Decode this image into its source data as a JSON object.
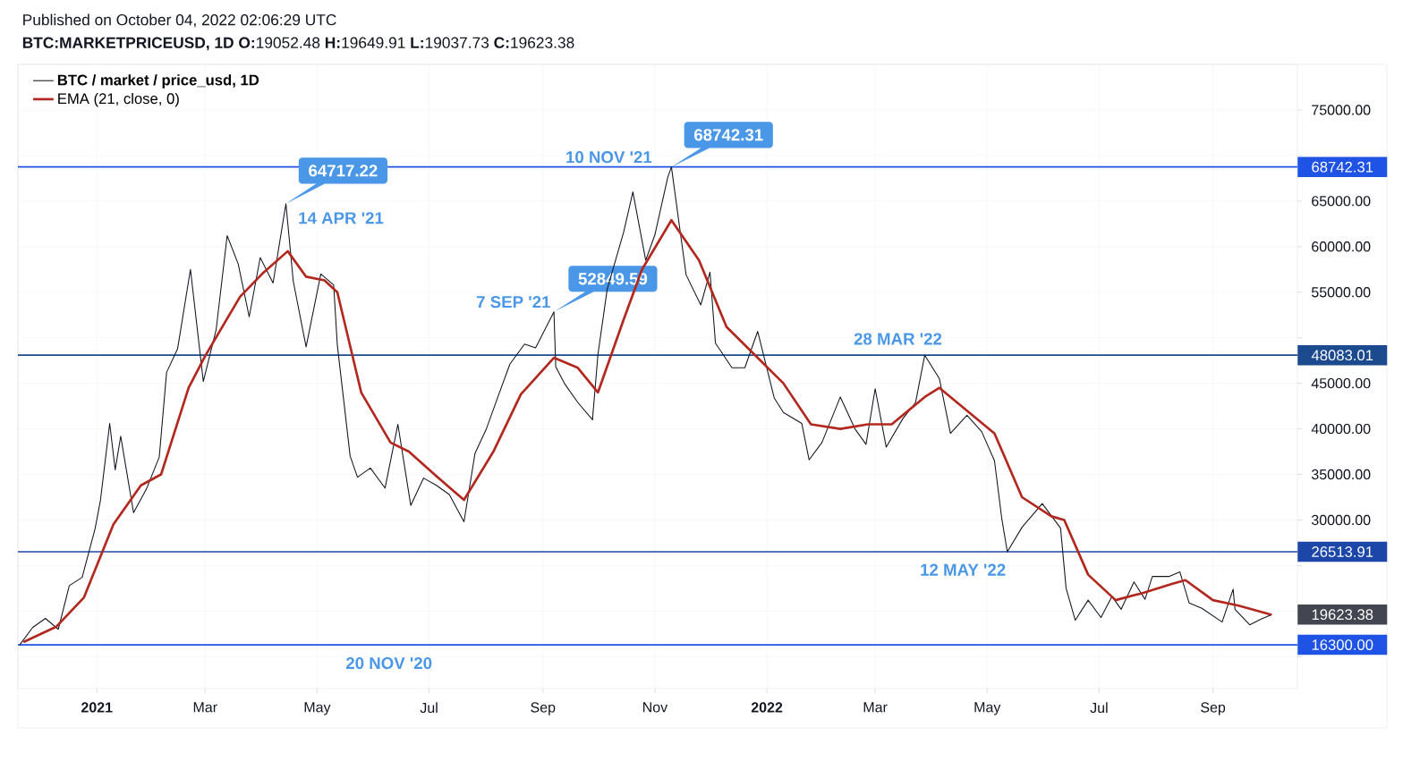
{
  "chart_data": {
    "type": "line",
    "title": "Published on October 04, 2022 02:06:29 UTC",
    "subtitle": "**BTC:MARKETPRICEUSD, 1D O:**19052.48 **H:**19649.91 **L:**19037.73 **C:**19623.38",
    "series": [
      {
        "name": "BTC / market / price_usd, 1D",
        "color": "#131722",
        "x": [
          "2020-11-20",
          "2020-11-27",
          "2020-12-04",
          "2020-12-11",
          "2020-12-17",
          "2020-12-24",
          "2020-12-31",
          "2021-01-03",
          "2021-01-08",
          "2021-01-11",
          "2021-01-14",
          "2021-01-21",
          "2021-01-28",
          "2021-02-04",
          "2021-02-08",
          "2021-02-14",
          "2021-02-21",
          "2021-02-28",
          "2021-03-07",
          "2021-03-13",
          "2021-03-19",
          "2021-03-25",
          "2021-03-31",
          "2021-04-07",
          "2021-04-14",
          "2021-04-18",
          "2021-04-25",
          "2021-05-03",
          "2021-05-10",
          "2021-05-12",
          "2021-05-19",
          "2021-05-23",
          "2021-05-30",
          "2021-06-07",
          "2021-06-14",
          "2021-06-21",
          "2021-06-28",
          "2021-07-05",
          "2021-07-12",
          "2021-07-20",
          "2021-07-26",
          "2021-08-01",
          "2021-08-08",
          "2021-08-14",
          "2021-08-22",
          "2021-08-28",
          "2021-09-07",
          "2021-09-08",
          "2021-09-13",
          "2021-09-20",
          "2021-09-28",
          "2021-10-01",
          "2021-10-06",
          "2021-10-15",
          "2021-10-20",
          "2021-10-27",
          "2021-11-01",
          "2021-11-08",
          "2021-11-10",
          "2021-11-18",
          "2021-11-26",
          "2021-12-01",
          "2021-12-04",
          "2021-12-13",
          "2021-12-20",
          "2021-12-27",
          "2022-01-05",
          "2022-01-10",
          "2022-01-20",
          "2022-01-24",
          "2022-01-31",
          "2022-02-10",
          "2022-02-18",
          "2022-02-24",
          "2022-03-01",
          "2022-03-07",
          "2022-03-16",
          "2022-03-23",
          "2022-03-28",
          "2022-04-05",
          "2022-04-11",
          "2022-04-20",
          "2022-04-28",
          "2022-05-05",
          "2022-05-09",
          "2022-05-12",
          "2022-05-20",
          "2022-05-31",
          "2022-06-10",
          "2022-06-13",
          "2022-06-18",
          "2022-06-25",
          "2022-07-02",
          "2022-07-08",
          "2022-07-13",
          "2022-07-20",
          "2022-07-26",
          "2022-07-30",
          "2022-08-08",
          "2022-08-14",
          "2022-08-19",
          "2022-08-26",
          "2022-09-06",
          "2022-09-12",
          "2022-09-13",
          "2022-09-21",
          "2022-09-27",
          "2022-10-03"
        ],
        "values": [
          16300,
          18200,
          19200,
          18000,
          22800,
          23700,
          29000,
          32200,
          40600,
          35500,
          39200,
          30800,
          33400,
          36900,
          46200,
          48800,
          57500,
          45200,
          50900,
          61200,
          58100,
          52300,
          58800,
          56000,
          64717.22,
          56200,
          49000,
          57000,
          55800,
          49200,
          37000,
          34700,
          35700,
          33500,
          40500,
          31600,
          34600,
          33800,
          32800,
          29800,
          37300,
          39900,
          43800,
          47100,
          49300,
          48900,
          52849.59,
          46800,
          44900,
          42900,
          41000,
          48200,
          55300,
          61600,
          66000,
          58500,
          61300,
          67600,
          68742.31,
          56900,
          53600,
          57200,
          49400,
          46700,
          46700,
          50700,
          43400,
          41800,
          40600,
          36600,
          38500,
          43500,
          40000,
          38300,
          44400,
          38000,
          41100,
          42900,
          48083.01,
          45500,
          39500,
          41500,
          39700,
          36500,
          30100,
          26513.91,
          29200,
          31800,
          29100,
          22500,
          19000,
          21200,
          19300,
          21600,
          20200,
          23200,
          21300,
          23800,
          23800,
          24300,
          20900,
          20300,
          18800,
          22400,
          20200,
          18500,
          19100,
          19623.38
        ]
      },
      {
        "name": "EMA (21, close, 0)",
        "color": "#b2281f",
        "x": [
          "2020-11-22",
          "2020-12-10",
          "2020-12-25",
          "2021-01-10",
          "2021-01-25",
          "2021-02-05",
          "2021-02-20",
          "2021-03-01",
          "2021-03-20",
          "2021-04-01",
          "2021-04-15",
          "2021-04-25",
          "2021-05-05",
          "2021-05-12",
          "2021-05-25",
          "2021-06-10",
          "2021-06-20",
          "2021-07-05",
          "2021-07-20",
          "2021-08-05",
          "2021-08-20",
          "2021-09-07",
          "2021-09-20",
          "2021-10-01",
          "2021-10-15",
          "2021-10-25",
          "2021-11-10",
          "2021-11-25",
          "2021-12-10",
          "2021-12-25",
          "2022-01-10",
          "2022-01-25",
          "2022-02-10",
          "2022-02-25",
          "2022-03-10",
          "2022-03-28",
          "2022-04-05",
          "2022-04-20",
          "2022-05-05",
          "2022-05-20",
          "2022-06-05",
          "2022-06-12",
          "2022-06-25",
          "2022-07-10",
          "2022-07-25",
          "2022-08-10",
          "2022-08-17",
          "2022-09-01",
          "2022-09-15",
          "2022-10-03"
        ],
        "values": [
          16600,
          18300,
          21500,
          29500,
          33800,
          35000,
          44500,
          48000,
          54500,
          57000,
          59500,
          56700,
          56300,
          55000,
          44000,
          38500,
          37500,
          34800,
          32200,
          37500,
          43800,
          47800,
          46700,
          44000,
          52000,
          57500,
          62900,
          58500,
          51200,
          48200,
          45000,
          40500,
          40000,
          40500,
          40500,
          43500,
          44500,
          42000,
          39500,
          32500,
          30400,
          30000,
          24000,
          21200,
          22000,
          23000,
          23400,
          21200,
          20600,
          19600
        ]
      }
    ],
    "xlim": [
      "2020-11-19",
      "2022-10-17"
    ],
    "xticks": [
      {
        "value": "2021-01-01",
        "label": "2021"
      },
      {
        "value": "2021-03-01",
        "label": "Mar"
      },
      {
        "value": "2021-05-01",
        "label": "May"
      },
      {
        "value": "2021-07-01",
        "label": "Jul"
      },
      {
        "value": "2021-09-01",
        "label": "Sep"
      },
      {
        "value": "2021-11-01",
        "label": "Nov"
      },
      {
        "value": "2022-01-01",
        "label": "2022"
      },
      {
        "value": "2022-03-01",
        "label": "Mar"
      },
      {
        "value": "2022-05-01",
        "label": "May"
      },
      {
        "value": "2022-07-01",
        "label": "Jul"
      },
      {
        "value": "2022-09-01",
        "label": "Sep"
      }
    ],
    "ylim": [
      11500,
      80000
    ],
    "yticks": [
      {
        "value": 15000,
        "label": null
      },
      {
        "value": 20000,
        "label": null
      },
      {
        "value": 25000,
        "label": null
      },
      {
        "value": 30000,
        "label": "30000.00"
      },
      {
        "value": 35000,
        "label": "35000.00"
      },
      {
        "value": 40000,
        "label": "40000.00"
      },
      {
        "value": 45000,
        "label": "45000.00"
      },
      {
        "value": 50000,
        "label": null
      },
      {
        "value": 55000,
        "label": "55000.00"
      },
      {
        "value": 60000,
        "label": "60000.00"
      },
      {
        "value": 65000,
        "label": "65000.00"
      },
      {
        "value": 70000,
        "label": null
      },
      {
        "value": 75000,
        "label": "75000.00"
      }
    ],
    "grid": true,
    "legend": "top left",
    "ref_lines": [
      {
        "axis": "y",
        "value": 68742.31,
        "label": "68742.31",
        "color": "#1e53e5"
      },
      {
        "axis": "y",
        "value": 48083.01,
        "label": "48083.01",
        "color": "#1b4a8f"
      },
      {
        "axis": "y",
        "value": 26513.91,
        "label": "26513.91",
        "color": "#1c47a8"
      },
      {
        "axis": "y",
        "value": 16300,
        "label": "16300.00",
        "color": "#1e53e5"
      }
    ],
    "annotations": [
      {
        "text": "64717.22",
        "x": "2021-04-14",
        "y": 64717.22
      },
      {
        "text": "14 APR '21",
        "x": "2021-04-14",
        "y": 64717.22
      },
      {
        "text": "68742.31",
        "x": "2021-11-10",
        "y": 68742.31
      },
      {
        "text": "10 NOV '21",
        "x": "2021-11-10",
        "y": 68742.31
      },
      {
        "text": "52849.59",
        "x": "2021-09-07",
        "y": 52849.59
      },
      {
        "text": "7 SEP '21",
        "x": "2021-09-07",
        "y": 52849.59
      },
      {
        "text": "28 MAR '22",
        "x": "2022-03-28",
        "y": 48083.01
      },
      {
        "text": "12 MAY '22",
        "x": "2022-05-12",
        "y": 26513.91
      },
      "20 NOV '20",
      {
        "text": "19623.38",
        "x": "2022-10-03",
        "y": 19623.38
      }
    ]
  }
}
